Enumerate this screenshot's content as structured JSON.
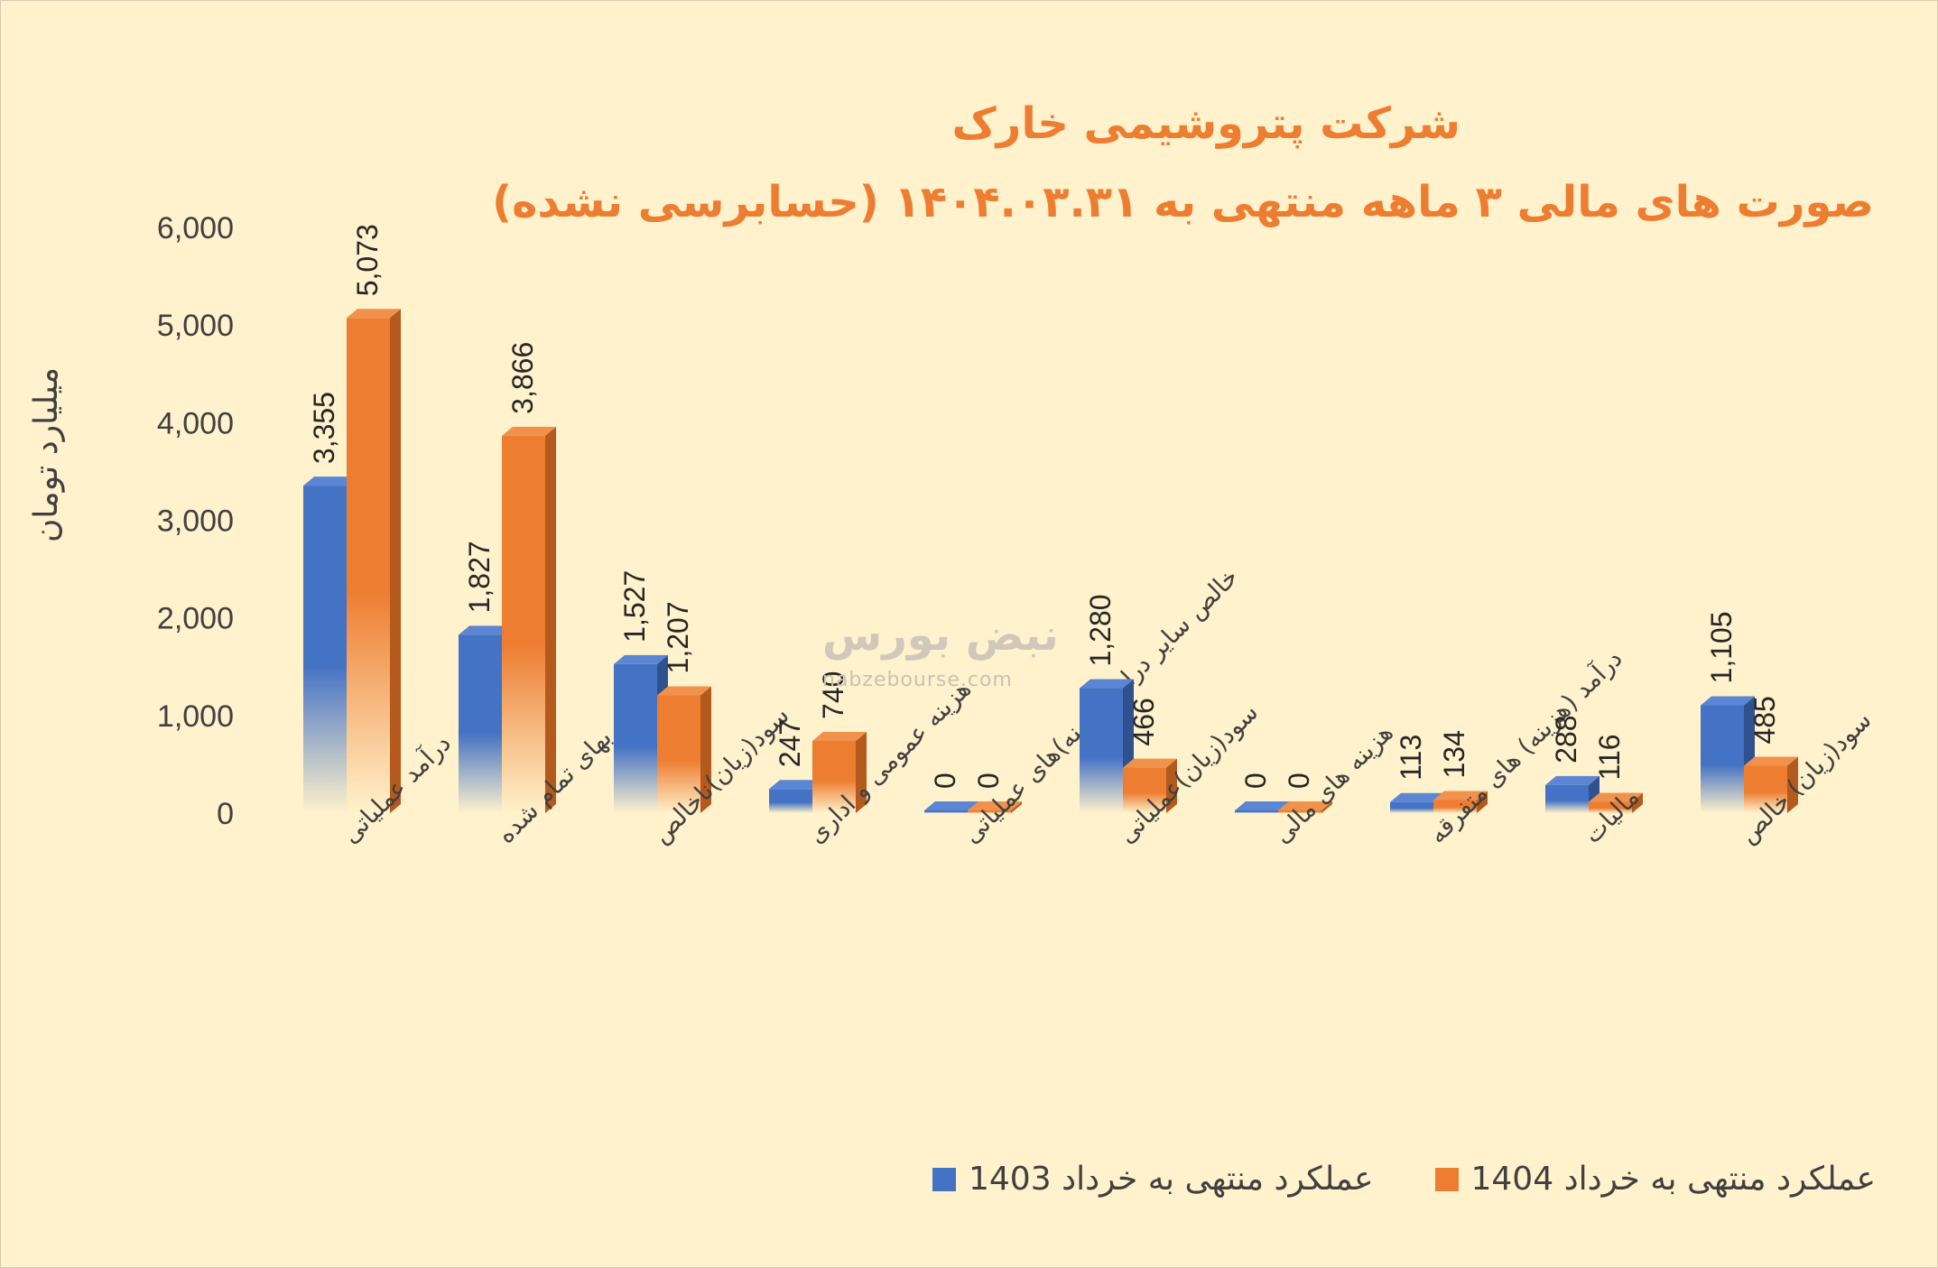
{
  "title": "شرکت پتروشیمی خارک",
  "subtitle": "صورت های مالی ۳ ماهه منتهی به ۱۴۰۴.۰۳.۳۱ (حسابرسی نشده)",
  "watermark": {
    "brand": "نبض بورس",
    "url": "nabzebourse.com"
  },
  "colors": {
    "series_1403": "#4472c4",
    "series_1404": "#ed7d31",
    "title": "#ed7d31",
    "background": "#fff2cc"
  },
  "chart_data": {
    "type": "bar",
    "title": "شرکت پتروشیمی خارک",
    "ylabel": "میلیارد تومان",
    "xlabel": "",
    "ylim": [
      0,
      6000
    ],
    "yticks": [
      "0",
      "1,000",
      "2,000",
      "3,000",
      "4,000",
      "5,000",
      "6,000"
    ],
    "grid": false,
    "legend_position": "bottom-right",
    "categories": [
      "درآمد عملیاتی",
      "بهای تمام شده",
      "سود(زیان)ناخالص",
      "هزینه عمومی و اداری",
      "خالص سایر درامد(هزینه)های عملیاتی",
      "سود(زیان)عملیاتی",
      "هزینه های مالی",
      "درآمد (هزینه) های متفرقه",
      "مالیات",
      "سود(زیان) خالص"
    ],
    "series": [
      {
        "name": "عملکرد منتهی به خرداد 1403",
        "values": [
          3355,
          1827,
          1527,
          247,
          0,
          1280,
          0,
          113,
          288,
          1105
        ],
        "labels": [
          "3,355",
          "1,827",
          "1,527",
          "247",
          "0",
          "1,280",
          "0",
          "113",
          "288",
          "1,105"
        ]
      },
      {
        "name": "عملکرد منتهی به خرداد 1404",
        "values": [
          5073,
          3866,
          1207,
          740,
          0,
          466,
          0,
          134,
          116,
          485
        ],
        "labels": [
          "5,073",
          "3,866",
          "1,207",
          "740",
          "0",
          "466",
          "0",
          "134",
          "116",
          "485"
        ]
      }
    ]
  }
}
